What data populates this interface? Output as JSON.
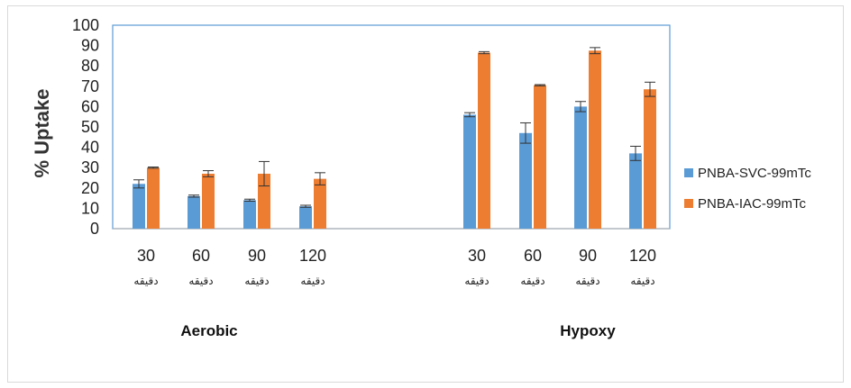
{
  "chart_data": {
    "type": "bar",
    "ylabel": "% Uptake",
    "ylim": [
      0,
      100
    ],
    "yticks": [
      0,
      10,
      20,
      30,
      40,
      50,
      60,
      70,
      80,
      90,
      100
    ],
    "groups": [
      {
        "name": "Aerobic",
        "categories": [
          {
            "value": "30",
            "unit": "دقيقه"
          },
          {
            "value": "60",
            "unit": "دقيقه"
          },
          {
            "value": "90",
            "unit": "دقيقه"
          },
          {
            "value": "120",
            "unit": "دقيقه"
          }
        ]
      },
      {
        "name": "Hypoxy",
        "categories": [
          {
            "value": "30",
            "unit": "دقيقه"
          },
          {
            "value": "60",
            "unit": "دقيقه"
          },
          {
            "value": "90",
            "unit": "دقيقه"
          },
          {
            "value": "120",
            "unit": "دقيقه"
          }
        ]
      }
    ],
    "series": [
      {
        "name": "PNBA-SVC-99mTc",
        "color": "#5b9bd5",
        "values": [
          22,
          16,
          14,
          11,
          56,
          47,
          60,
          37
        ],
        "errors": [
          2,
          0.5,
          0.5,
          0.5,
          1,
          5,
          2.5,
          3.5
        ]
      },
      {
        "name": "PNBA-IAC-99mTc",
        "color": "#ed7d31",
        "values": [
          30,
          27,
          27,
          24.5,
          86.5,
          70.5,
          87.5,
          68.5
        ],
        "errors": [
          0.3,
          1.5,
          6,
          3,
          0.5,
          0.3,
          1.5,
          3.5
        ]
      }
    ],
    "legend_position": "right",
    "grid": false
  }
}
